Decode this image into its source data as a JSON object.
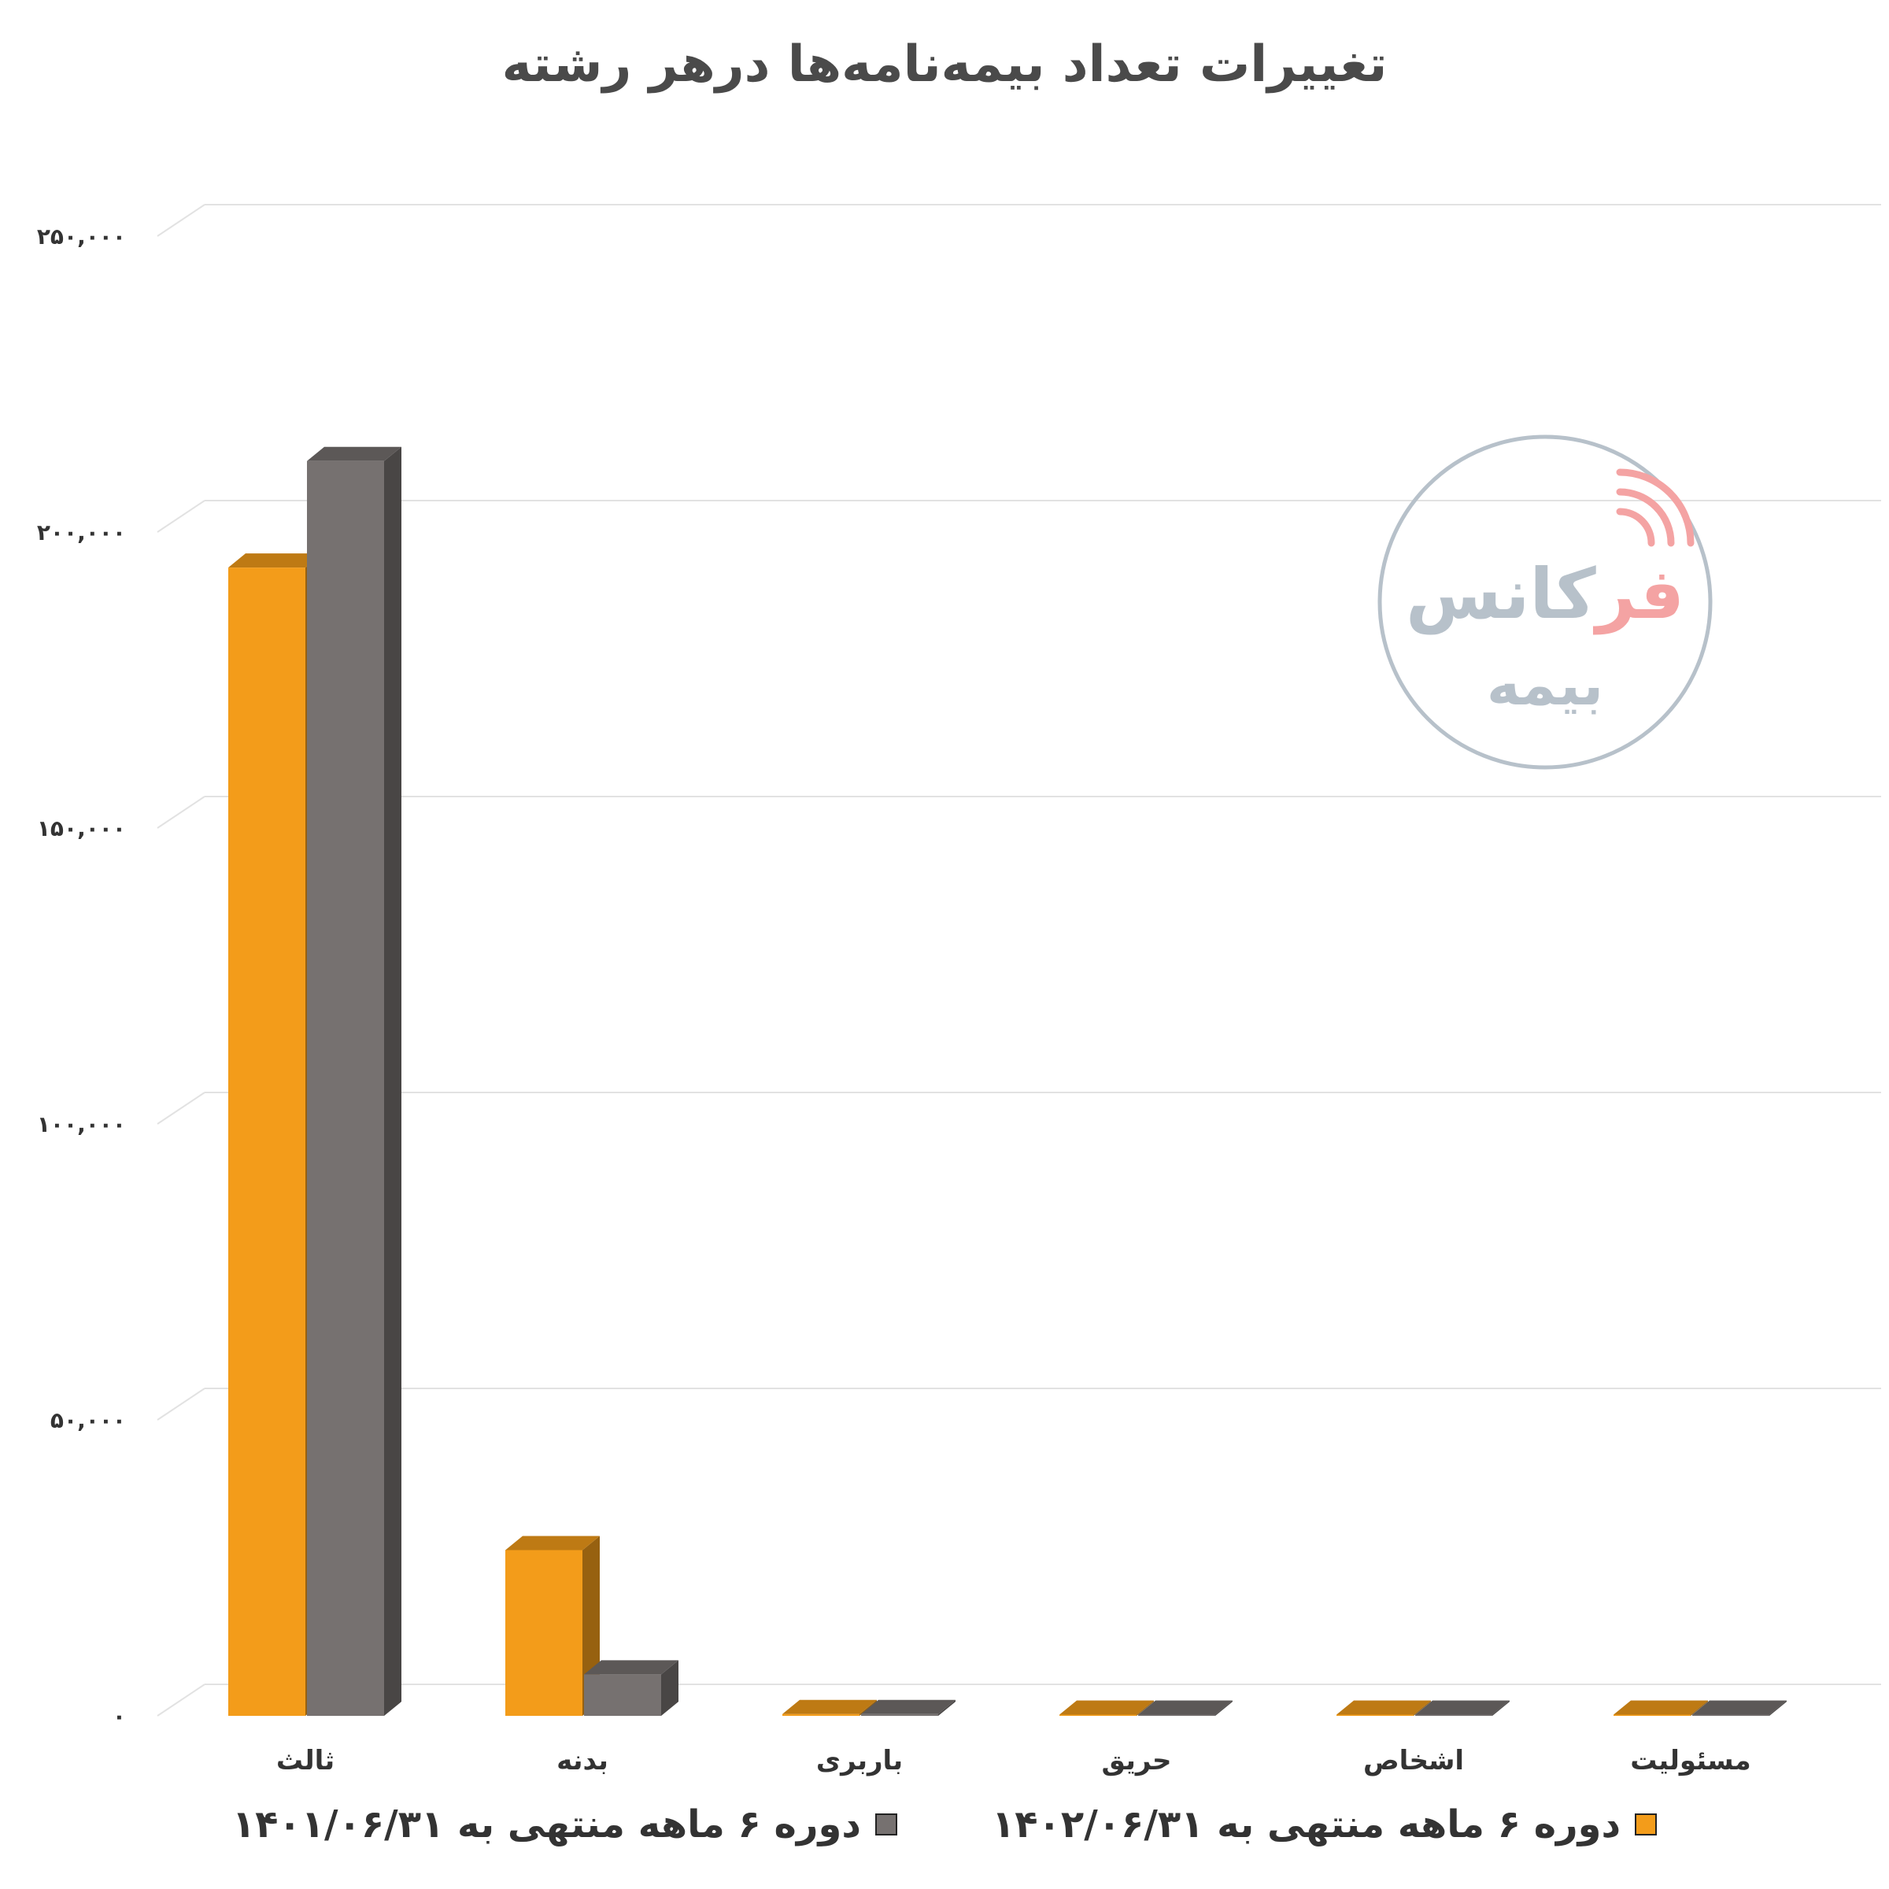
{
  "title": "تغییرات تعداد بیمه‌نامه‌ها درهر رشته",
  "watermark": {
    "line1_red": "فر",
    "line1_gray": "کانس",
    "line2": "بیمه"
  },
  "chart_data": {
    "type": "bar",
    "title": "تغییرات تعداد بیمه‌نامه‌ها درهر رشته",
    "categories": [
      "ثالث",
      "بدنه",
      "باربری",
      "حریق",
      "اشخاص",
      "مسئولیت"
    ],
    "series": [
      {
        "name": "دوره ۶ ماهه منتهی به ۱۴۰۲/۰۶/۳۱",
        "color": "#F39C1A",
        "values": [
          194000,
          28000,
          300,
          200,
          200,
          200
        ]
      },
      {
        "name": "دوره ۶ ماهه منتهی به ۱۴۰۱/۰۶/۳۱",
        "color": "#767170",
        "values": [
          212000,
          7000,
          300,
          200,
          200,
          200
        ]
      }
    ],
    "ylim": [
      0,
      250000
    ],
    "yticks": [
      0,
      50000,
      100000,
      150000,
      200000,
      250000
    ],
    "ytick_labels": [
      "۰",
      "۵۰,۰۰۰",
      "۱۰۰,۰۰۰",
      "۱۵۰,۰۰۰",
      "۲۰۰,۰۰۰",
      "۲۵۰,۰۰۰"
    ],
    "grid": true,
    "legend_position": "bottom"
  }
}
